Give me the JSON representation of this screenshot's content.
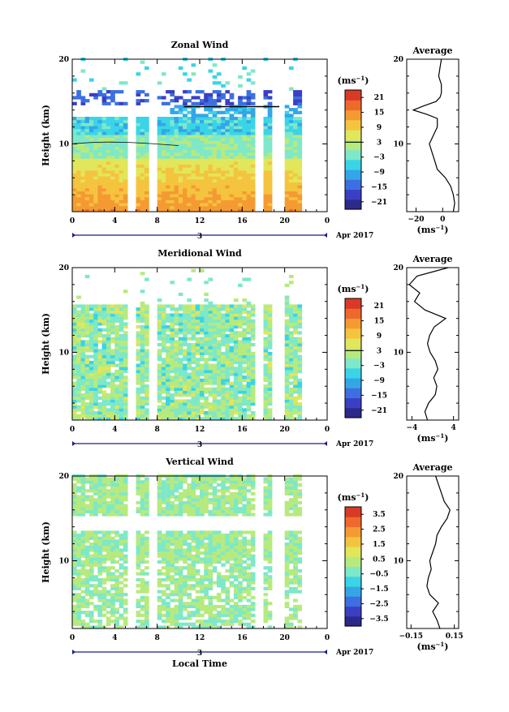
{
  "chart_data": [
    {
      "type": "heatmap",
      "title": "Zonal Wind",
      "xlabel": "",
      "ylabel": "Height (km)",
      "x_ticks": [
        "0",
        "4",
        "8",
        "12",
        "16",
        "20",
        "0"
      ],
      "y_ticks": [
        "10",
        "20"
      ],
      "xlim": [
        0,
        24
      ],
      "ylim": [
        2,
        20
      ],
      "date_day": "3",
      "date_label": "Apr 2017",
      "colorbar": {
        "unit": "(ms",
        "unit_exp": "−1",
        "unit_close": ")",
        "ticks": [
          "21",
          "15",
          "9",
          "3",
          "−3",
          "−9",
          "−15",
          "−21"
        ],
        "range": [
          -24,
          24
        ]
      },
      "average_profile": {
        "title": "Average",
        "xlabel": "(ms",
        "xlabel_exp": "−1",
        "xlabel_close": ")",
        "x_ticks": [
          "−20",
          "0"
        ],
        "y_ticks": [
          "10",
          "20"
        ],
        "xlim": [
          -27,
          12
        ],
        "heights": [
          2,
          3,
          4,
          5,
          6,
          7,
          8,
          9,
          10,
          11,
          12,
          13,
          13.5,
          14,
          14.5,
          15,
          15.5,
          16,
          17,
          18,
          19,
          20
        ],
        "values": [
          8,
          9,
          8,
          6,
          2,
          -4,
          -6,
          -8,
          -10,
          -7,
          -4,
          -4,
          -12,
          -22,
          -14,
          -5,
          -2,
          -1,
          -1,
          -3,
          -2,
          -1
        ]
      }
    },
    {
      "type": "heatmap",
      "title": "Meridional Wind",
      "xlabel": "",
      "ylabel": "Height (km)",
      "x_ticks": [
        "0",
        "4",
        "8",
        "12",
        "16",
        "20",
        "0"
      ],
      "y_ticks": [
        "10",
        "20"
      ],
      "xlim": [
        0,
        24
      ],
      "ylim": [
        2,
        20
      ],
      "date_day": "3",
      "date_label": "Apr 2017",
      "colorbar": {
        "unit": "(ms",
        "unit_exp": "−1",
        "unit_close": ")",
        "ticks": [
          "21",
          "15",
          "9",
          "3",
          "−3",
          "−9",
          "−15",
          "−21"
        ],
        "range": [
          -24,
          24
        ]
      },
      "average_profile": {
        "title": "Average",
        "xlabel": "(ms",
        "xlabel_exp": "−1",
        "xlabel_close": ")",
        "x_ticks": [
          "−4",
          "4"
        ],
        "y_ticks": [
          "10",
          "20"
        ],
        "xlim": [
          -5,
          5
        ],
        "heights": [
          2,
          3,
          4,
          5,
          6,
          7,
          8,
          9,
          10,
          11,
          12,
          13,
          14,
          15,
          16,
          17,
          18,
          19,
          20
        ],
        "values": [
          -1,
          -1.5,
          -0.8,
          0.5,
          0.8,
          0.2,
          1.0,
          0.5,
          -0.5,
          -1.0,
          -0.6,
          0.3,
          2.5,
          -1.5,
          -3.5,
          -2.5,
          -4.5,
          -3,
          3
        ]
      }
    },
    {
      "type": "heatmap",
      "title": "Vertical Wind",
      "xlabel": "Local Time",
      "ylabel": "Height (km)",
      "x_ticks": [
        "0",
        "4",
        "8",
        "12",
        "16",
        "20",
        "0"
      ],
      "y_ticks": [
        "10",
        "20"
      ],
      "xlim": [
        0,
        24
      ],
      "ylim": [
        2,
        20
      ],
      "date_day": "3",
      "date_label": "Apr 2017",
      "colorbar": {
        "unit": "(ms",
        "unit_exp": "−1",
        "unit_close": ")",
        "ticks": [
          "3.5",
          "2.5",
          "1.5",
          "0.5",
          "−0.5",
          "−1.5",
          "−2.5",
          "−3.5"
        ],
        "range": [
          -4,
          4
        ]
      },
      "average_profile": {
        "title": "Average",
        "xlabel": "(ms",
        "xlabel_exp": "−1",
        "xlabel_close": ")",
        "x_ticks": [
          "−0.15",
          "0.15"
        ],
        "y_ticks": [
          "10",
          "20"
        ],
        "xlim": [
          -0.18,
          0.18
        ],
        "heights": [
          2,
          3,
          4,
          5,
          6,
          7,
          8,
          9,
          10,
          11,
          12,
          13,
          14,
          15,
          16,
          17,
          18,
          19,
          20
        ],
        "values": [
          0.05,
          0.03,
          0.0,
          0.04,
          -0.02,
          -0.04,
          -0.03,
          -0.01,
          -0.02,
          0.0,
          0.02,
          0.03,
          0.06,
          0.1,
          0.12,
          0.08,
          0.06,
          0.04,
          0.02
        ]
      }
    }
  ]
}
